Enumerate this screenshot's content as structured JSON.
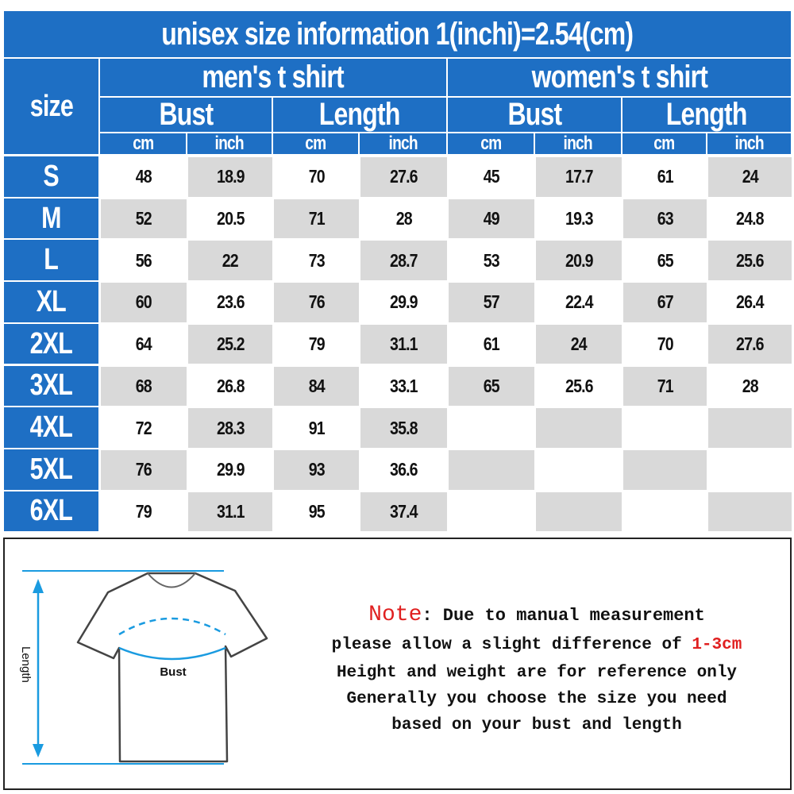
{
  "title": "unisex size information   1(inchi)=2.54(cm)",
  "size_header": "size",
  "groups": [
    "men's t shirt",
    "women's t shirt"
  ],
  "measures": [
    "Bust",
    "Length",
    "Bust",
    "Length"
  ],
  "units": [
    "cm",
    "inch",
    "cm",
    "inch",
    "cm",
    "inch",
    "cm",
    "inch"
  ],
  "rows": [
    {
      "size": "S",
      "values": [
        "48",
        "18.9",
        "70",
        "27.6",
        "45",
        "17.7",
        "61",
        "24"
      ]
    },
    {
      "size": "M",
      "values": [
        "52",
        "20.5",
        "71",
        "28",
        "49",
        "19.3",
        "63",
        "24.8"
      ]
    },
    {
      "size": "L",
      "values": [
        "56",
        "22",
        "73",
        "28.7",
        "53",
        "20.9",
        "65",
        "25.6"
      ]
    },
    {
      "size": "XL",
      "values": [
        "60",
        "23.6",
        "76",
        "29.9",
        "57",
        "22.4",
        "67",
        "26.4"
      ]
    },
    {
      "size": "2XL",
      "values": [
        "64",
        "25.2",
        "79",
        "31.1",
        "61",
        "24",
        "70",
        "27.6"
      ]
    },
    {
      "size": "3XL",
      "values": [
        "68",
        "26.8",
        "84",
        "33.1",
        "65",
        "25.6",
        "71",
        "28"
      ]
    },
    {
      "size": "4XL",
      "values": [
        "72",
        "28.3",
        "91",
        "35.8",
        "",
        "",
        "",
        ""
      ]
    },
    {
      "size": "5XL",
      "values": [
        "76",
        "29.9",
        "93",
        "36.6",
        "",
        "",
        "",
        ""
      ]
    },
    {
      "size": "6XL",
      "values": [
        "79",
        "31.1",
        "95",
        "37.4",
        "",
        "",
        "",
        ""
      ]
    }
  ],
  "diagram": {
    "length_label": "Length",
    "bust_label": "Bust"
  },
  "note": {
    "prefix": "Note",
    "line1": ": Due to manual measurement",
    "line2": "please allow a slight difference of ",
    "line2_highlight": "1-3cm",
    "line3": "Height and weight are for reference only",
    "line4": "Generally you choose the size you need",
    "line5": "based on your bust and length"
  },
  "colors": {
    "header_blue": "#1e6fc4",
    "shade_gray": "#d9d9d9",
    "note_red": "#e02020",
    "measure_blue": "#1a9be0"
  }
}
